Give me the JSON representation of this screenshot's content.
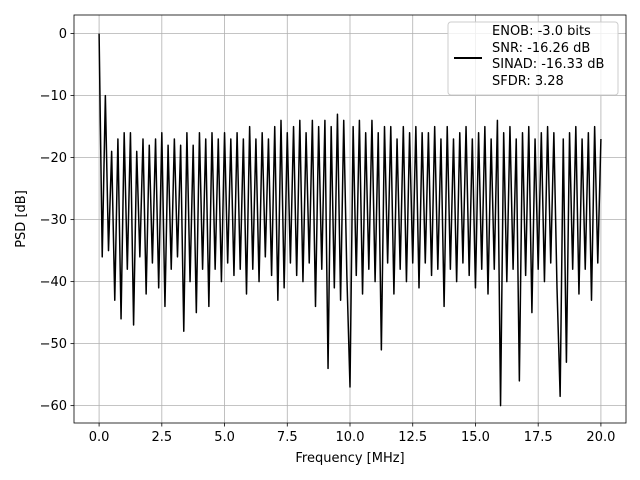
{
  "chart_data": {
    "type": "line",
    "xlabel": "Frequency [MHz]",
    "ylabel": "PSD [dB]",
    "x": [
      0,
      0.125,
      0.25,
      0.375,
      0.5,
      0.625,
      0.75,
      0.875,
      1,
      1.125,
      1.25,
      1.375,
      1.5,
      1.625,
      1.75,
      1.875,
      2,
      2.125,
      2.25,
      2.375,
      2.5,
      2.625,
      2.75,
      2.875,
      3,
      3.125,
      3.25,
      3.375,
      3.5,
      3.625,
      3.75,
      3.875,
      4,
      4.125,
      4.25,
      4.375,
      4.5,
      4.625,
      4.75,
      4.875,
      5,
      5.125,
      5.25,
      5.375,
      5.5,
      5.625,
      5.75,
      5.875,
      6,
      6.125,
      6.25,
      6.375,
      6.5,
      6.625,
      6.75,
      6.875,
      7,
      7.125,
      7.25,
      7.375,
      7.5,
      7.625,
      7.75,
      7.875,
      8,
      8.125,
      8.25,
      8.375,
      8.5,
      8.625,
      8.75,
      8.875,
      9,
      9.125,
      9.25,
      9.375,
      9.5,
      9.625,
      9.75,
      9.875,
      10,
      10.125,
      10.25,
      10.375,
      10.5,
      10.625,
      10.75,
      10.875,
      11,
      11.125,
      11.25,
      11.375,
      11.5,
      11.625,
      11.75,
      11.875,
      12,
      12.125,
      12.25,
      12.375,
      12.5,
      12.625,
      12.75,
      12.875,
      13,
      13.125,
      13.25,
      13.375,
      13.5,
      13.625,
      13.75,
      13.875,
      14,
      14.125,
      14.25,
      14.375,
      14.5,
      14.625,
      14.75,
      14.875,
      15,
      15.125,
      15.25,
      15.375,
      15.5,
      15.625,
      15.75,
      15.875,
      16,
      16.125,
      16.25,
      16.375,
      16.5,
      16.625,
      16.75,
      16.875,
      17,
      17.125,
      17.25,
      17.375,
      17.5,
      17.625,
      17.75,
      17.875,
      18,
      18.125,
      18.25,
      18.375,
      18.5,
      18.625,
      18.75,
      18.875,
      19,
      19.125,
      19.25,
      19.375,
      19.5,
      19.625,
      19.75,
      19.875,
      20
    ],
    "series": [
      {
        "name": "ENOB: -3.0 bits\nSNR: -16.26 dB\nSINAD: -16.33 dB\nSFDR: 3.28",
        "color": "#000000",
        "values": [
          0,
          -36,
          -10,
          -35,
          -19,
          -43,
          -17,
          -46,
          -16,
          -38,
          -16,
          -47,
          -19,
          -36,
          -17,
          -42,
          -18,
          -37,
          -17,
          -41,
          -16,
          -44,
          -18,
          -38,
          -17,
          -36,
          -18,
          -48,
          -16,
          -40,
          -18,
          -45,
          -16,
          -38,
          -17,
          -44,
          -16,
          -38,
          -17,
          -40,
          -16,
          -37,
          -17,
          -39,
          -16,
          -38,
          -17,
          -42,
          -15,
          -38,
          -17,
          -40,
          -16,
          -36,
          -17,
          -39,
          -15,
          -43,
          -14,
          -41,
          -16,
          -37,
          -15,
          -39,
          -14,
          -40,
          -16,
          -37,
          -14,
          -44,
          -15,
          -38,
          -14,
          -54,
          -15,
          -41,
          -13,
          -43,
          -14,
          -39,
          -57,
          -15,
          -39,
          -14,
          -42,
          -16,
          -38,
          -14,
          -40,
          -16,
          -51,
          -15,
          -37,
          -15,
          -42,
          -17,
          -38,
          -15,
          -40,
          -16,
          -37,
          -15,
          -41,
          -16,
          -37,
          -16,
          -39,
          -15,
          -38,
          -17,
          -44,
          -15,
          -38,
          -17,
          -40,
          -16,
          -37,
          -15,
          -39,
          -17,
          -41,
          -16,
          -38,
          -15,
          -42,
          -17,
          -38,
          -14,
          -60,
          -16,
          -40,
          -15,
          -38,
          -17,
          -56,
          -16,
          -39,
          -15,
          -45,
          -17,
          -38,
          -16,
          -40,
          -15,
          -37,
          -16,
          -41,
          -58.5,
          -17,
          -53,
          -16,
          -38,
          -15,
          -42,
          -17,
          -38,
          -16,
          -43,
          -15,
          -37,
          -17
        ]
      }
    ],
    "xlim": [
      -1,
      21
    ],
    "ylim": [
      -62.8,
      3.0
    ],
    "xticks": [
      {
        "value": 0,
        "label": "0.0"
      },
      {
        "value": 2.5,
        "label": "2.5"
      },
      {
        "value": 5,
        "label": "5.0"
      },
      {
        "value": 7.5,
        "label": "7.5"
      },
      {
        "value": 10,
        "label": "10.0"
      },
      {
        "value": 12.5,
        "label": "12.5"
      },
      {
        "value": 15,
        "label": "15.0"
      },
      {
        "value": 17.5,
        "label": "17.5"
      },
      {
        "value": 20,
        "label": "20.0"
      }
    ],
    "yticks": [
      0,
      {
        "value": -10,
        "label": "−10"
      },
      {
        "value": -20,
        "label": "−20"
      },
      {
        "value": -30,
        "label": "−30"
      },
      {
        "value": -40,
        "label": "−40"
      },
      {
        "value": -50,
        "label": "−50"
      },
      {
        "value": -60,
        "label": "−60"
      }
    ],
    "grid": true,
    "legend": "upper right"
  }
}
